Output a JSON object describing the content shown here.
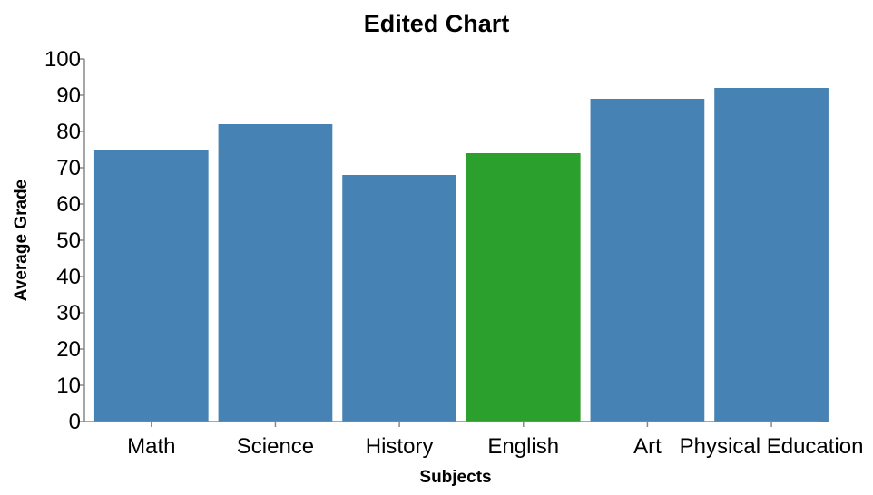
{
  "chart_data": {
    "type": "bar",
    "title": "Edited Chart",
    "xlabel": "Subjects",
    "ylabel": "Average Grade",
    "categories": [
      "Math",
      "Science",
      "History",
      "English",
      "Art",
      "Physical Education"
    ],
    "values": [
      75,
      82,
      68,
      74,
      89,
      92
    ],
    "colors": [
      "#4682b4",
      "#4682b4",
      "#4682b4",
      "#2ca02c",
      "#4682b4",
      "#4682b4"
    ],
    "ylim": [
      0,
      100
    ],
    "yticks": [
      0,
      10,
      20,
      30,
      40,
      50,
      60,
      70,
      80,
      90,
      100
    ],
    "grid": false,
    "legend": "none"
  }
}
